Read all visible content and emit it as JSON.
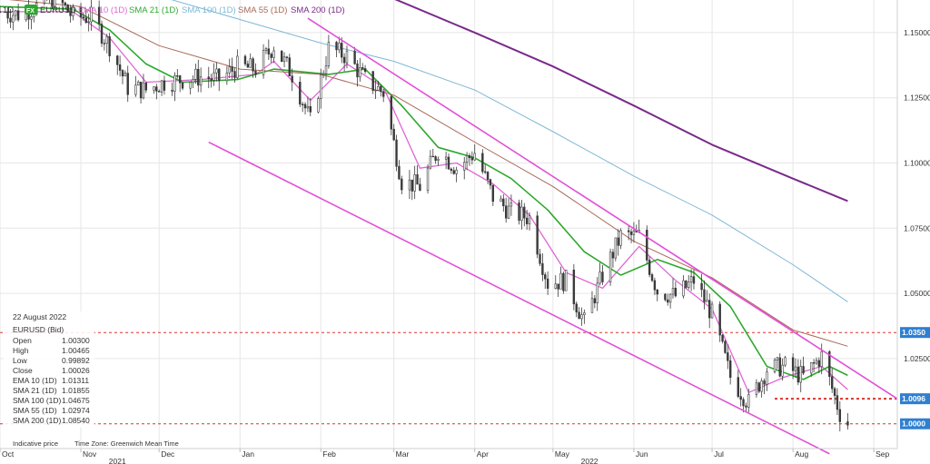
{
  "legend": {
    "interval": "1D",
    "symbol_badge": "FX",
    "symbol": "EURUSD",
    "items": [
      {
        "label": "EMA 10 (1D)",
        "color": "#e066d6"
      },
      {
        "label": "SMA 21 (1D)",
        "color": "#2ea82e"
      },
      {
        "label": "SMA 100 (1D)",
        "color": "#7fb8d6"
      },
      {
        "label": "SMA 55 (1D)",
        "color": "#a8685a"
      },
      {
        "label": "SMA 200 (1D)",
        "color": "#7a2a8a"
      }
    ]
  },
  "info_panel": {
    "date": "22 August 2022",
    "title": "EURUSD (Bid)",
    "rows": [
      {
        "label": "Open",
        "value": "1.00300"
      },
      {
        "label": "High",
        "value": "1.00465"
      },
      {
        "label": "Low",
        "value": "0.99892"
      },
      {
        "label": "Close",
        "value": "1.00026"
      },
      {
        "label": "EMA 10 (1D)",
        "value": "1.01311",
        "color": "#e066d6"
      },
      {
        "label": "SMA 21 (1D)",
        "value": "1.01855",
        "color": "#2ea82e"
      },
      {
        "label": "SMA 100 (1D)",
        "value": "1.04675",
        "color": "#7fb8d6"
      },
      {
        "label": "SMA 55 (1D)",
        "value": "1.02974",
        "color": "#a8685a"
      },
      {
        "label": "SMA 200 (1D)",
        "value": "1.08540",
        "color": "#7a2a8a"
      }
    ]
  },
  "footer": {
    "indicative": "Indicative price",
    "timezone": "Time Zone: Greenwich Mean Time"
  },
  "price_tags": [
    {
      "label": "1.0350",
      "value": 1.035
    },
    {
      "label": "1.0096",
      "value": 1.0096
    },
    {
      "label": "1.0000",
      "value": 1.0
    }
  ],
  "colors": {
    "candle": "#3a3a3a",
    "channel": "#e24fd8",
    "level": "#d9342b",
    "tag": "#2f7fd0",
    "grid": "#e6e6e6"
  },
  "chart_data": {
    "type": "candlestick",
    "instrument": "EURUSD",
    "interval": "1D",
    "ylim": [
      0.9905,
      1.1625
    ],
    "y_ticks": [
      1.15,
      1.125,
      1.1,
      1.075,
      1.05,
      1.025
    ],
    "y_tick_labels": [
      "1.15000",
      "1.12500",
      "1.10000",
      "1.07500",
      "1.05000",
      "1.02500"
    ],
    "x_ticks": [
      {
        "label": "Oct",
        "date": "2021-10-01"
      },
      {
        "label": "Nov",
        "date": "2021-11-01"
      },
      {
        "label": "Dec",
        "date": "2021-12-01"
      },
      {
        "label": "Jan",
        "date": "2022-01-01"
      },
      {
        "label": "Feb",
        "date": "2022-02-01"
      },
      {
        "label": "Mar",
        "date": "2022-03-01"
      },
      {
        "label": "Apr",
        "date": "2022-04-01"
      },
      {
        "label": "May",
        "date": "2022-05-01"
      },
      {
        "label": "Jun",
        "date": "2022-06-01"
      },
      {
        "label": "Jul",
        "date": "2022-07-01"
      },
      {
        "label": "Aug",
        "date": "2022-08-01"
      },
      {
        "label": "Sep",
        "date": "2022-09-01"
      }
    ],
    "years": [
      {
        "label": "2021",
        "date": "2021-11-15"
      },
      {
        "label": "2022",
        "date": "2022-05-15"
      }
    ],
    "x_range": [
      "2021-10-01",
      "2022-09-10"
    ],
    "closes": [
      [
        "2021-10-01",
        1.158
      ],
      [
        "2021-10-08",
        1.157
      ],
      [
        "2021-10-15",
        1.16
      ],
      [
        "2021-10-22",
        1.164
      ],
      [
        "2021-10-29",
        1.156
      ],
      [
        "2021-11-05",
        1.156
      ],
      [
        "2021-11-12",
        1.145
      ],
      [
        "2021-11-19",
        1.129
      ],
      [
        "2021-11-26",
        1.128
      ],
      [
        "2021-12-03",
        1.131
      ],
      [
        "2021-12-10",
        1.132
      ],
      [
        "2021-12-17",
        1.133
      ],
      [
        "2021-12-24",
        1.132
      ],
      [
        "2021-12-31",
        1.137
      ],
      [
        "2022-01-07",
        1.136
      ],
      [
        "2022-01-14",
        1.145
      ],
      [
        "2022-01-21",
        1.134
      ],
      [
        "2022-01-28",
        1.116
      ],
      [
        "2022-02-04",
        1.144
      ],
      [
        "2022-02-11",
        1.141
      ],
      [
        "2022-02-18",
        1.132
      ],
      [
        "2022-02-25",
        1.127
      ],
      [
        "2022-03-04",
        1.093
      ],
      [
        "2022-03-11",
        1.091
      ],
      [
        "2022-03-18",
        1.105
      ],
      [
        "2022-03-25",
        1.098
      ],
      [
        "2022-04-01",
        1.104
      ],
      [
        "2022-04-08",
        1.087
      ],
      [
        "2022-04-15",
        1.081
      ],
      [
        "2022-04-22",
        1.079
      ],
      [
        "2022-04-29",
        1.054
      ],
      [
        "2022-05-06",
        1.055
      ],
      [
        "2022-05-13",
        1.039
      ],
      [
        "2022-05-20",
        1.057
      ],
      [
        "2022-05-27",
        1.072
      ],
      [
        "2022-06-03",
        1.072
      ],
      [
        "2022-06-10",
        1.051
      ],
      [
        "2022-06-17",
        1.049
      ],
      [
        "2022-06-24",
        1.055
      ],
      [
        "2022-07-01",
        1.042
      ],
      [
        "2022-07-08",
        1.018
      ],
      [
        "2022-07-15",
        1.008
      ],
      [
        "2022-07-22",
        1.021
      ],
      [
        "2022-07-29",
        1.022
      ],
      [
        "2022-08-05",
        1.018
      ],
      [
        "2022-08-12",
        1.026
      ],
      [
        "2022-08-19",
        1.004
      ],
      [
        "2022-08-22",
        1.00026
      ]
    ],
    "series": [
      {
        "name": "EMA 10 (1D)",
        "color": "#e066d6",
        "width": 1.3,
        "points": [
          [
            "2021-10-01",
            1.158
          ],
          [
            "2021-10-29",
            1.158
          ],
          [
            "2021-11-12",
            1.148
          ],
          [
            "2021-11-26",
            1.131
          ],
          [
            "2021-12-17",
            1.132
          ],
          [
            "2022-01-07",
            1.134
          ],
          [
            "2022-01-14",
            1.139
          ],
          [
            "2022-01-28",
            1.124
          ],
          [
            "2022-02-11",
            1.138
          ],
          [
            "2022-02-25",
            1.129
          ],
          [
            "2022-03-11",
            1.098
          ],
          [
            "2022-03-25",
            1.1
          ],
          [
            "2022-04-08",
            1.092
          ],
          [
            "2022-04-22",
            1.08
          ],
          [
            "2022-05-06",
            1.058
          ],
          [
            "2022-05-20",
            1.052
          ],
          [
            "2022-06-03",
            1.068
          ],
          [
            "2022-06-17",
            1.055
          ],
          [
            "2022-07-01",
            1.044
          ],
          [
            "2022-07-15",
            1.012
          ],
          [
            "2022-07-29",
            1.018
          ],
          [
            "2022-08-12",
            1.022
          ],
          [
            "2022-08-22",
            1.01311
          ]
        ]
      },
      {
        "name": "SMA 21 (1D)",
        "color": "#2ea82e",
        "width": 1.6,
        "points": [
          [
            "2021-10-01",
            1.16
          ],
          [
            "2021-10-29",
            1.159
          ],
          [
            "2021-11-12",
            1.151
          ],
          [
            "2021-11-26",
            1.138
          ],
          [
            "2021-12-10",
            1.131
          ],
          [
            "2021-12-31",
            1.132
          ],
          [
            "2022-01-14",
            1.136
          ],
          [
            "2022-02-04",
            1.134
          ],
          [
            "2022-02-18",
            1.136
          ],
          [
            "2022-03-04",
            1.122
          ],
          [
            "2022-03-18",
            1.106
          ],
          [
            "2022-04-01",
            1.102
          ],
          [
            "2022-04-15",
            1.094
          ],
          [
            "2022-04-29",
            1.082
          ],
          [
            "2022-05-13",
            1.066
          ],
          [
            "2022-05-27",
            1.057
          ],
          [
            "2022-06-10",
            1.063
          ],
          [
            "2022-06-24",
            1.058
          ],
          [
            "2022-07-08",
            1.045
          ],
          [
            "2022-07-22",
            1.022
          ],
          [
            "2022-08-05",
            1.017
          ],
          [
            "2022-08-15",
            1.022
          ],
          [
            "2022-08-22",
            1.01855
          ]
        ]
      },
      {
        "name": "SMA 55 (1D)",
        "color": "#a8685a",
        "width": 1.0,
        "points": [
          [
            "2021-10-01",
            1.163
          ],
          [
            "2021-11-01",
            1.16
          ],
          [
            "2021-12-01",
            1.145
          ],
          [
            "2022-01-01",
            1.136
          ],
          [
            "2022-02-01",
            1.134
          ],
          [
            "2022-03-01",
            1.126
          ],
          [
            "2022-04-01",
            1.108
          ],
          [
            "2022-05-01",
            1.091
          ],
          [
            "2022-06-01",
            1.07
          ],
          [
            "2022-07-01",
            1.056
          ],
          [
            "2022-08-01",
            1.036
          ],
          [
            "2022-08-22",
            1.02974
          ]
        ]
      },
      {
        "name": "SMA 100 (1D)",
        "color": "#7fb8d6",
        "width": 1.0,
        "points": [
          [
            "2021-10-01",
            1.175
          ],
          [
            "2021-11-01",
            1.171
          ],
          [
            "2021-12-01",
            1.164
          ],
          [
            "2022-01-01",
            1.155
          ],
          [
            "2022-02-01",
            1.146
          ],
          [
            "2022-03-01",
            1.139
          ],
          [
            "2022-04-01",
            1.128
          ],
          [
            "2022-05-01",
            1.112
          ],
          [
            "2022-06-01",
            1.095
          ],
          [
            "2022-07-01",
            1.08
          ],
          [
            "2022-08-01",
            1.061
          ],
          [
            "2022-08-22",
            1.04675
          ]
        ]
      },
      {
        "name": "SMA 200 (1D)",
        "color": "#7a2a8a",
        "width": 2.0,
        "points": [
          [
            "2022-01-15",
            1.174
          ],
          [
            "2022-03-01",
            1.163
          ],
          [
            "2022-04-01",
            1.15
          ],
          [
            "2022-05-01",
            1.137
          ],
          [
            "2022-06-01",
            1.122
          ],
          [
            "2022-07-01",
            1.107
          ],
          [
            "2022-08-01",
            1.094
          ],
          [
            "2022-08-22",
            1.0854
          ]
        ]
      }
    ],
    "trend_lines": [
      {
        "name": "channel-upper",
        "from": [
          "2022-01-27",
          1.1555
        ],
        "to": [
          "2022-09-10",
          1.0096
        ]
      },
      {
        "name": "channel-lower",
        "from": [
          "2021-12-20",
          1.108
        ],
        "to": [
          "2022-08-15",
          0.9885
        ]
      }
    ],
    "levels": [
      {
        "value": 1.035,
        "from": "2021-10-01",
        "to": "2022-09-10"
      },
      {
        "value": 1.0096,
        "from": "2022-07-25",
        "to": "2022-09-10"
      },
      {
        "value": 1.0,
        "from": "2021-10-01",
        "to": "2022-09-10"
      }
    ]
  }
}
